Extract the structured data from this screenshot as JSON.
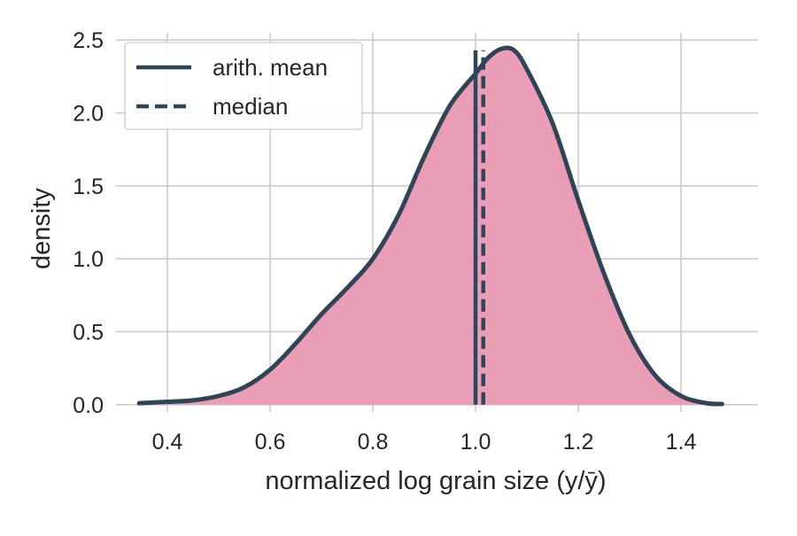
{
  "chart_data": {
    "type": "area",
    "xlabel": "normalized log grain size (y/ȳ)",
    "ylabel": "density",
    "xlim": [
      0.3,
      1.55
    ],
    "ylim": [
      -0.05,
      2.55
    ],
    "grid": true,
    "legend_position": "top-left",
    "x_ticks": [
      0.4,
      0.6,
      0.8,
      1.0,
      1.2,
      1.4
    ],
    "x_tick_labels": [
      "0.4",
      "0.6",
      "0.8",
      "1.0",
      "1.2",
      "1.4"
    ],
    "y_ticks": [
      0.0,
      0.5,
      1.0,
      1.5,
      2.0,
      2.5
    ],
    "y_tick_labels": [
      "0.0",
      "0.5",
      "1.0",
      "1.5",
      "2.0",
      "2.5"
    ],
    "series": [
      {
        "x": [
          0.345,
          0.4,
          0.45,
          0.5,
          0.55,
          0.6,
          0.65,
          0.7,
          0.75,
          0.8,
          0.85,
          0.9,
          0.95,
          1.0,
          1.025,
          1.05,
          1.075,
          1.1,
          1.15,
          1.2,
          1.25,
          1.3,
          1.35,
          1.4,
          1.45,
          1.48
        ],
        "y": [
          0.01,
          0.02,
          0.03,
          0.06,
          0.12,
          0.24,
          0.42,
          0.62,
          0.8,
          1.0,
          1.3,
          1.7,
          2.05,
          2.27,
          2.38,
          2.44,
          2.43,
          2.3,
          1.93,
          1.4,
          0.9,
          0.48,
          0.2,
          0.06,
          0.01,
          0.005
        ]
      }
    ],
    "reference_lines": [
      {
        "name": "arith. mean",
        "x": 1.0,
        "style": "solid"
      },
      {
        "name": "median",
        "x": 1.015,
        "style": "dashed"
      }
    ],
    "legend": [
      "arith. mean",
      "median"
    ],
    "colors": {
      "fill": "#e899b2",
      "line": "#2e4557",
      "grid": "#cccccc",
      "text": "#262626"
    }
  }
}
